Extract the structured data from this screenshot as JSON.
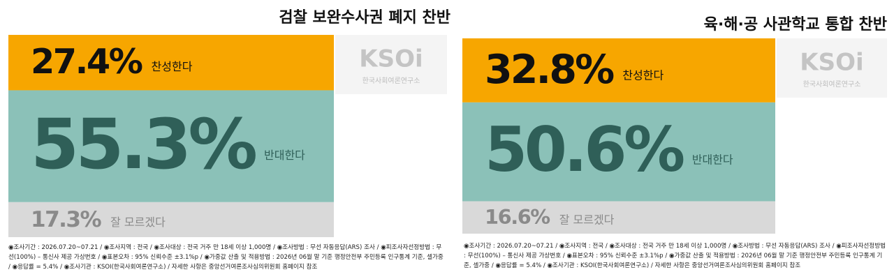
{
  "chart_data": [
    {
      "type": "stacked-share",
      "title": "검찰 보완수사권 폐지 찬반",
      "categories": [
        "찬성한다",
        "반대한다",
        "잘 모르겠다"
      ],
      "values": [
        27.4,
        55.3,
        17.3
      ],
      "value_labels": [
        "27.4%",
        "55.3%",
        "17.3%"
      ],
      "colors": [
        "#f7a600",
        "#8bc1b8",
        "#d9d9d9"
      ],
      "text_colors": [
        "#111111",
        "#2f5f58",
        "#8a8a8a"
      ]
    },
    {
      "type": "stacked-share",
      "title": "육·해·공 사관학교 통합 찬반",
      "categories": [
        "찬성한다",
        "반대한다",
        "잘 모르겠다"
      ],
      "values": [
        32.8,
        50.6,
        16.6
      ],
      "value_labels": [
        "32.8%",
        "50.6%",
        "16.6%"
      ],
      "colors": [
        "#f7a600",
        "#8bc1b8",
        "#d9d9d9"
      ],
      "text_colors": [
        "#111111",
        "#2f5f58",
        "#8a8a8a"
      ]
    }
  ],
  "logo": {
    "name": "KSOi",
    "subtitle": "한국사회여론연구소"
  },
  "footnote": "◉조사기간 : 2026.07.20~07.21 / ◉조사지역 : 전국 / ◉조사대상 : 전국 거주 만 18세 이상 1,000명 / ◉조사방법 : 무선 자동응답(ARS) 조사 / ◉피조사자선정방법 : 무선(100%) – 통신사 제공 가상번호 / ◉표본오차 : 95% 신뢰수준 ±3.1%p / ◉가중값 산출 및 적용방법 : 2026년 06월 말 기준 행정안전부 주민등록 인구통계 기준, 셀가중 / ◉응답률 = 5.4% / ◉조사기관 : KSOI(한국사회여론연구소) / 자세한 사항은 중앙선거여론조사심의위원회 홈페이지 참조"
}
